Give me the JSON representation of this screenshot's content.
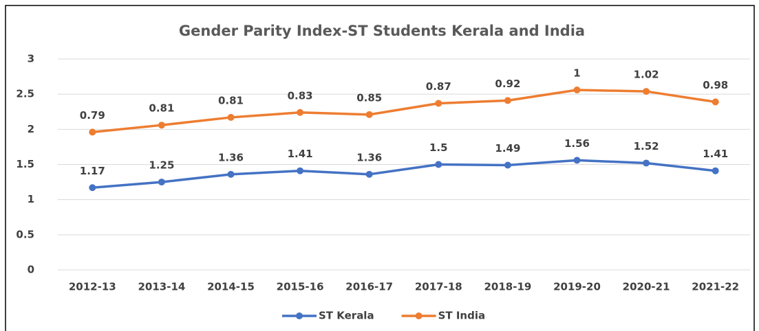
{
  "chart_data": {
    "type": "line",
    "stacked": true,
    "title": "Gender Parity Index-ST Students Kerala and India",
    "categories": [
      "2012-13",
      "2013-14",
      "2014-15",
      "2015-16",
      "2016-17",
      "2017-18",
      "2018-19",
      "2019-20",
      "2020-21",
      "2021-22"
    ],
    "series": [
      {
        "name": "ST Kerala",
        "color": "#4472c4",
        "values": [
          1.17,
          1.25,
          1.36,
          1.41,
          1.36,
          1.5,
          1.49,
          1.56,
          1.52,
          1.41
        ]
      },
      {
        "name": "ST India",
        "color": "#ed7d31",
        "values": [
          0.79,
          0.81,
          0.81,
          0.83,
          0.85,
          0.87,
          0.92,
          1,
          1.02,
          0.98
        ]
      }
    ],
    "ylim": [
      0,
      3
    ],
    "yticks": [
      0,
      0.5,
      1,
      1.5,
      2,
      2.5,
      3
    ],
    "grid": true,
    "legend": "bottom"
  }
}
